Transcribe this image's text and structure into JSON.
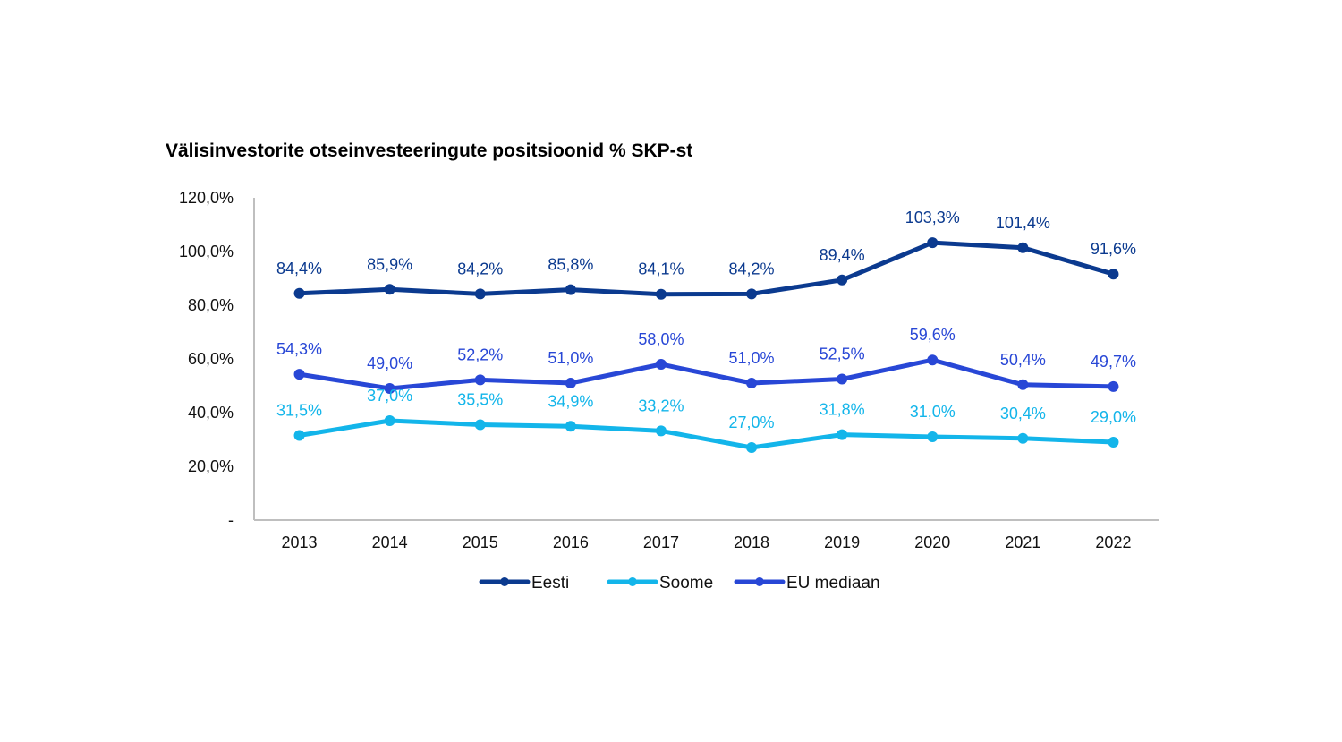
{
  "chart_data": {
    "type": "line",
    "title": "Välisinvestorite otseinvesteeringute positsioonid % SKP-st",
    "xlabel": "",
    "ylabel": "",
    "x": [
      "2013",
      "2014",
      "2015",
      "2016",
      "2017",
      "2018",
      "2019",
      "2020",
      "2021",
      "2022"
    ],
    "ylim": [
      0,
      120
    ],
    "y_ticks": [
      0,
      20,
      40,
      60,
      80,
      100,
      120
    ],
    "y_tick_labels": [
      "-",
      "20,0%",
      "40,0%",
      "60,0%",
      "80,0%",
      "100,0%",
      "120,0%"
    ],
    "grid": false,
    "legend_position": "bottom",
    "series": [
      {
        "name": "Eesti",
        "color": "#0B3A8F",
        "values": [
          84.4,
          85.9,
          84.2,
          85.8,
          84.1,
          84.2,
          89.4,
          103.3,
          101.4,
          91.6
        ],
        "labels": [
          "84,4%",
          "85,9%",
          "84,2%",
          "85,8%",
          "84,1%",
          "84,2%",
          "89,4%",
          "103,3%",
          "101,4%",
          "91,6%"
        ]
      },
      {
        "name": "Soome",
        "color": "#13B5EA",
        "values": [
          31.5,
          37.0,
          35.5,
          34.9,
          33.2,
          27.0,
          31.8,
          31.0,
          30.4,
          29.0
        ],
        "labels": [
          "31,5%",
          "37,0%",
          "35,5%",
          "34,9%",
          "33,2%",
          "27,0%",
          "31,8%",
          "31,0%",
          "30,4%",
          "29,0%"
        ]
      },
      {
        "name": "EU mediaan",
        "color": "#2847D6",
        "values": [
          54.3,
          49.0,
          52.2,
          51.0,
          58.0,
          51.0,
          52.5,
          59.6,
          50.4,
          49.7
        ],
        "labels": [
          "54,3%",
          "49,0%",
          "52,2%",
          "51,0%",
          "58,0%",
          "51,0%",
          "52,5%",
          "59,6%",
          "50,4%",
          "49,7%"
        ]
      }
    ]
  }
}
